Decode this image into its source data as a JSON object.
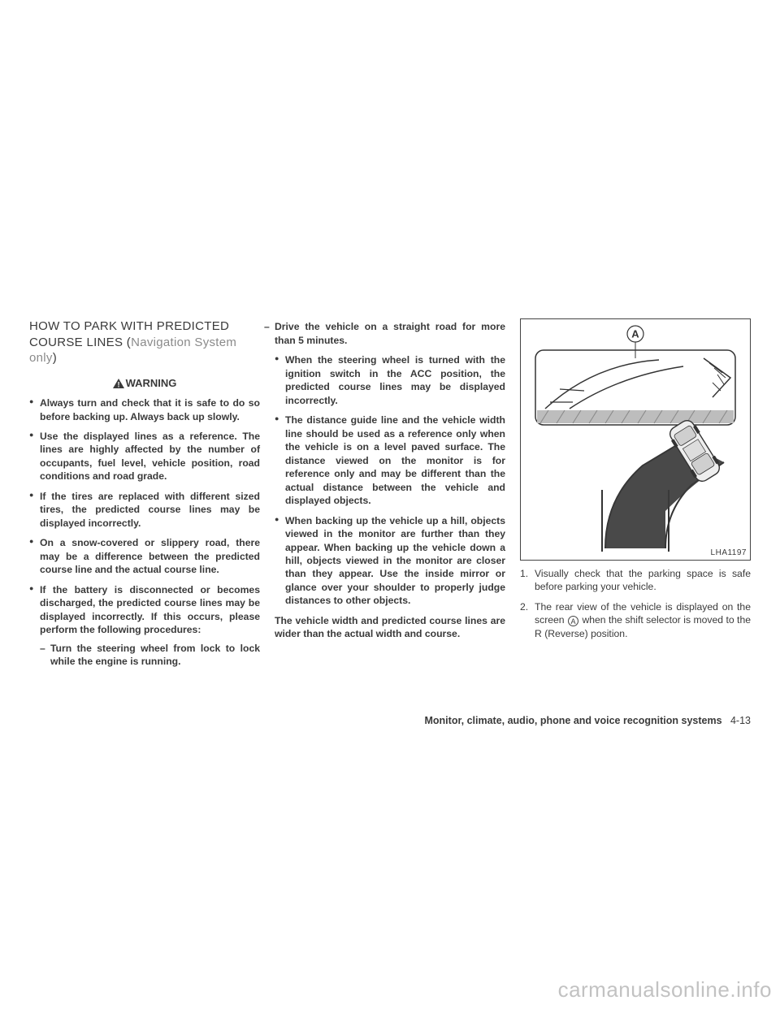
{
  "heading": {
    "line1": "HOW TO PARK WITH PREDICTED",
    "line2_pre": "COURSE LINES (",
    "line2_gray": "Navigation System only",
    "line2_post": ")"
  },
  "warning_label": "WARNING",
  "col1_bullets": [
    "Always turn and check that it is safe to do so before backing up. Always back up slowly.",
    "Use the displayed lines as a reference. The lines are highly affected by the number of occupants, fuel level, vehicle position, road conditions and road grade.",
    "If the tires are replaced with different sized tires, the predicted course lines may be displayed incorrectly.",
    "On a snow-covered or slippery road, there may be a difference between the predicted course line and the actual course line.",
    "If the battery is disconnected or becomes discharged, the predicted course lines may be displayed incorrectly. If this occurs, please perform the following procedures:"
  ],
  "col1_sub": [
    "Turn the steering wheel from lock to lock while the engine is running."
  ],
  "col2_sub": [
    "Drive the vehicle on a straight road for more than 5 minutes."
  ],
  "col2_bullets": [
    "When the steering wheel is turned with the ignition switch in the ACC position, the predicted course lines may be displayed incorrectly.",
    "The distance guide line and the vehicle width line should be used as a reference only when the vehicle is on a level paved surface. The distance viewed on the monitor is for reference only and may be different than the actual distance between the vehicle and displayed objects.",
    "When backing up the vehicle up a hill, objects viewed in the monitor are further than they appear. When backing up the vehicle down a hill, objects viewed in the monitor are closer than they appear. Use the inside mirror or glance over your shoulder to properly judge distances to other objects."
  ],
  "col2_para": "The vehicle width and predicted course lines are wider than the actual width and course.",
  "figure": {
    "label": "LHA1197",
    "callout": "A"
  },
  "col3_numbered": [
    "Visually check that the parking space is safe before parking your vehicle.",
    "The rear view of the vehicle is displayed on the screen {A} when the shift selector is moved to the R (Reverse) position."
  ],
  "footer": {
    "section": "Monitor, climate, audio, phone and voice recognition systems",
    "page": "4-13"
  },
  "watermark": "carmanualsonline.info"
}
